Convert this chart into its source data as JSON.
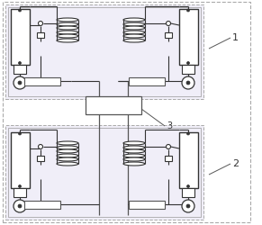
{
  "bg_color": "#ffffff",
  "dash_color": "#aaaaaa",
  "solid_color": "#888888",
  "comp_color": "#333333",
  "label_color": "#333333",
  "label_1": "1",
  "label_2": "2",
  "label_3": "3",
  "dot_bg": "#f0eef8",
  "fig_width": 2.91,
  "fig_height": 2.51,
  "dpi": 100
}
